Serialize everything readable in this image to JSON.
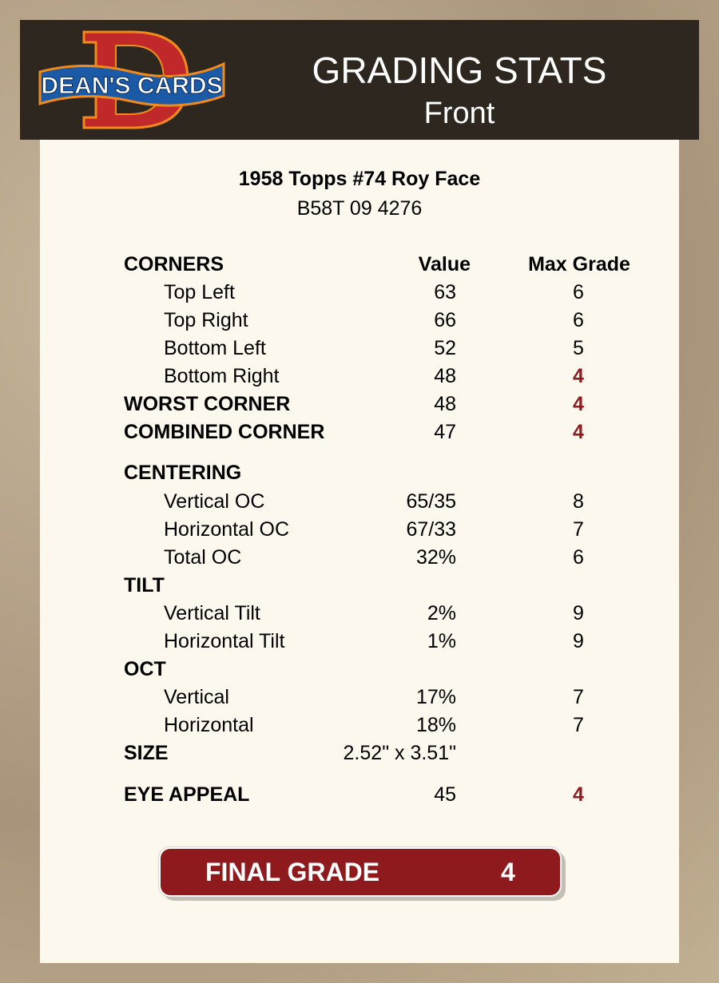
{
  "header": {
    "logo_text": "DEAN'S CARDS",
    "title": "GRADING STATS",
    "subtitle": "Front"
  },
  "card": {
    "title": "1958 Topps #74 Roy Face",
    "code": "B58T 09 4276"
  },
  "colors": {
    "header_bg": "#2e2720",
    "card_bg": "#fcf8ee",
    "accent_red": "#8f1a1d"
  },
  "rows": [
    {
      "label": "CORNERS",
      "value": "Value",
      "max": "Max Grade",
      "type": "header"
    },
    {
      "label": "Top Left",
      "value": "63",
      "max": "6",
      "type": "indent"
    },
    {
      "label": "Top Right",
      "value": "66",
      "max": "6",
      "type": "indent"
    },
    {
      "label": "Bottom Left",
      "value": "52",
      "max": "5",
      "type": "indent"
    },
    {
      "label": "Bottom Right",
      "value": "48",
      "max": "4",
      "type": "indent",
      "highlight": true
    },
    {
      "label": "WORST CORNER",
      "value": "48",
      "max": "4",
      "type": "bold",
      "highlight": true
    },
    {
      "label": "COMBINED CORNER",
      "value": "47",
      "max": "4",
      "type": "bold",
      "highlight": true
    },
    {
      "label": "CENTERING",
      "value": "",
      "max": "",
      "type": "bold"
    },
    {
      "label": "Vertical OC",
      "value": "65/35",
      "max": "8",
      "type": "indent"
    },
    {
      "label": "Horizontal OC",
      "value": "67/33",
      "max": "7",
      "type": "indent"
    },
    {
      "label": "Total OC",
      "value": "32%",
      "max": "6",
      "type": "indent"
    },
    {
      "label": "TILT",
      "value": "",
      "max": "",
      "type": "bold"
    },
    {
      "label": "Vertical Tilt",
      "value": "2%",
      "max": "9",
      "type": "indent"
    },
    {
      "label": "Horizontal Tilt",
      "value": "1%",
      "max": "9",
      "type": "indent"
    },
    {
      "label": "OCT",
      "value": "",
      "max": "",
      "type": "bold"
    },
    {
      "label": "Vertical",
      "value": "17%",
      "max": "7",
      "type": "indent"
    },
    {
      "label": "Horizontal",
      "value": "18%",
      "max": "7",
      "type": "indent"
    },
    {
      "label": "SIZE",
      "value": "2.52\" x 3.51\"",
      "max": "",
      "type": "bold"
    },
    {
      "label": "EYE APPEAL",
      "value": "45",
      "max": "4",
      "type": "bold",
      "highlight": true
    }
  ],
  "final": {
    "label": "FINAL GRADE",
    "value": "4"
  }
}
